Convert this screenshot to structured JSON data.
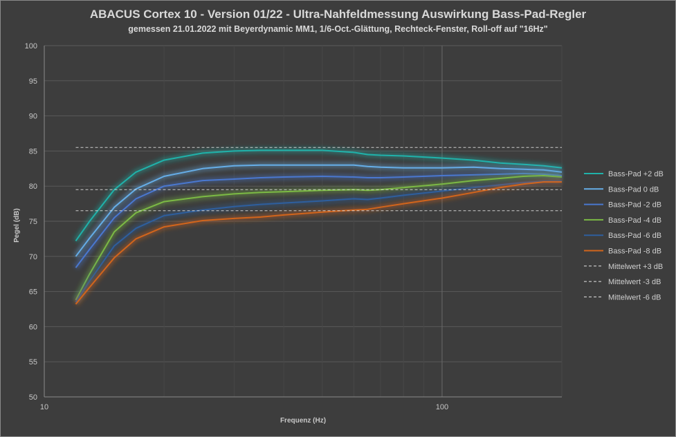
{
  "chart_data": {
    "type": "line",
    "title": "ABACUS Cortex 10 - Version 01/22 - Ultra-Nahfeldmessung Auswirkung Bass-Pad-Regler",
    "subtitle": "gemessen 21.01.2022  mit Beyerdynamic MM1, 1/6-Oct.-Glättung, Rechteck-Fenster, Roll-off auf \"16Hz\"",
    "xlabel": "Frequenz  (Hz)",
    "ylabel": "Pegel (dB)",
    "x_scale": "log",
    "xlim": [
      10,
      200
    ],
    "ylim": [
      50,
      100
    ],
    "y_ticks": [
      "50",
      "55",
      "60",
      "65",
      "70",
      "75",
      "80",
      "85",
      "90",
      "95",
      "100"
    ],
    "x_ticks": [
      "10",
      "100"
    ],
    "grid": true,
    "legend_position": "right",
    "colors": {
      "background": "#3d3d3d",
      "grid": "#5a5a5a",
      "text": "#d9d9d9"
    },
    "series": [
      {
        "name": "Bass-Pad +2 dB",
        "color": "#20b2aa",
        "glow": true,
        "x": [
          12,
          13,
          15,
          17,
          20,
          25,
          30,
          35,
          40,
          50,
          60,
          65,
          70,
          80,
          100,
          120,
          140,
          160,
          180,
          200
        ],
        "y": [
          72.2,
          75.0,
          79.5,
          82.0,
          83.7,
          84.7,
          85.0,
          85.1,
          85.1,
          85.1,
          84.8,
          84.5,
          84.4,
          84.3,
          84.0,
          83.7,
          83.3,
          83.1,
          82.9,
          82.6
        ]
      },
      {
        "name": "Bass-Pad 0 dB",
        "color": "#66aee8",
        "x": [
          12,
          13,
          15,
          17,
          20,
          25,
          30,
          35,
          40,
          50,
          60,
          65,
          70,
          80,
          100,
          120,
          140,
          160,
          180,
          200
        ],
        "y": [
          70.0,
          72.6,
          77.0,
          79.6,
          81.4,
          82.5,
          82.9,
          83.0,
          83.0,
          83.0,
          83.0,
          82.8,
          82.7,
          82.6,
          82.6,
          82.7,
          82.5,
          82.4,
          82.3,
          82.0
        ]
      },
      {
        "name": "Bass-Pad -2 dB",
        "color": "#4a78d0",
        "x": [
          12,
          13,
          15,
          17,
          20,
          25,
          30,
          35,
          40,
          50,
          60,
          65,
          70,
          80,
          100,
          120,
          140,
          160,
          180,
          200
        ],
        "y": [
          68.4,
          71.0,
          75.5,
          78.2,
          80.0,
          80.8,
          81.0,
          81.2,
          81.3,
          81.4,
          81.3,
          81.2,
          81.2,
          81.3,
          81.5,
          81.6,
          81.7,
          81.8,
          81.7,
          81.5
        ]
      },
      {
        "name": "Bass-Pad -4 dB",
        "color": "#7cba45",
        "x": [
          12,
          13,
          15,
          17,
          20,
          25,
          30,
          35,
          40,
          50,
          60,
          65,
          70,
          80,
          100,
          120,
          140,
          160,
          180,
          200
        ],
        "y": [
          63.8,
          67.5,
          73.5,
          76.2,
          77.8,
          78.5,
          78.9,
          79.1,
          79.2,
          79.4,
          79.5,
          79.4,
          79.5,
          79.8,
          80.3,
          80.8,
          81.1,
          81.4,
          81.5,
          81.3
        ]
      },
      {
        "name": "Bass-Pad -6 dB",
        "color": "#2e5f9e",
        "x": [
          12,
          13,
          15,
          17,
          20,
          25,
          30,
          35,
          40,
          50,
          60,
          65,
          70,
          80,
          100,
          120,
          140,
          160,
          180,
          200
        ],
        "y": [
          63.5,
          66.5,
          71.5,
          74.0,
          75.8,
          76.6,
          77.1,
          77.4,
          77.6,
          77.9,
          78.2,
          78.1,
          78.3,
          78.7,
          79.3,
          79.8,
          80.2,
          80.5,
          80.7,
          80.7
        ]
      },
      {
        "name": "Bass-Pad -8 dB",
        "color": "#d2651c",
        "x": [
          12,
          13,
          15,
          17,
          20,
          25,
          30,
          35,
          40,
          50,
          60,
          65,
          70,
          80,
          100,
          120,
          140,
          160,
          180,
          200
        ],
        "y": [
          63.2,
          65.6,
          69.8,
          72.5,
          74.2,
          75.1,
          75.4,
          75.6,
          75.9,
          76.3,
          76.6,
          76.7,
          77.0,
          77.5,
          78.3,
          79.1,
          79.8,
          80.3,
          80.6,
          80.6
        ]
      },
      {
        "name": "Mittelwert +3 dB",
        "color": "#e6e6e6",
        "dashed": true,
        "x": [
          12,
          200
        ],
        "y": [
          85.5,
          85.5
        ]
      },
      {
        "name": "Mittelwert -3 dB",
        "color": "#e6e6e6",
        "dashed": true,
        "x": [
          12,
          200
        ],
        "y": [
          79.5,
          79.5
        ]
      },
      {
        "name": "Mittelwert -6 dB",
        "color": "#e6e6e6",
        "dashed": true,
        "x": [
          12,
          200
        ],
        "y": [
          76.5,
          76.5
        ]
      }
    ]
  }
}
